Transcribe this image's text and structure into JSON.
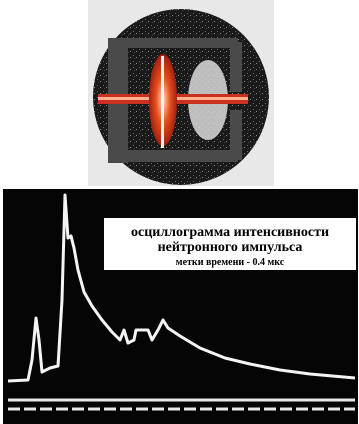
{
  "caption": {
    "title_line1": "осциллограмма интенсивности",
    "title_line2": "нейтронного импульса",
    "time_marks": "метки времени - 0.4 мкс"
  }
}
